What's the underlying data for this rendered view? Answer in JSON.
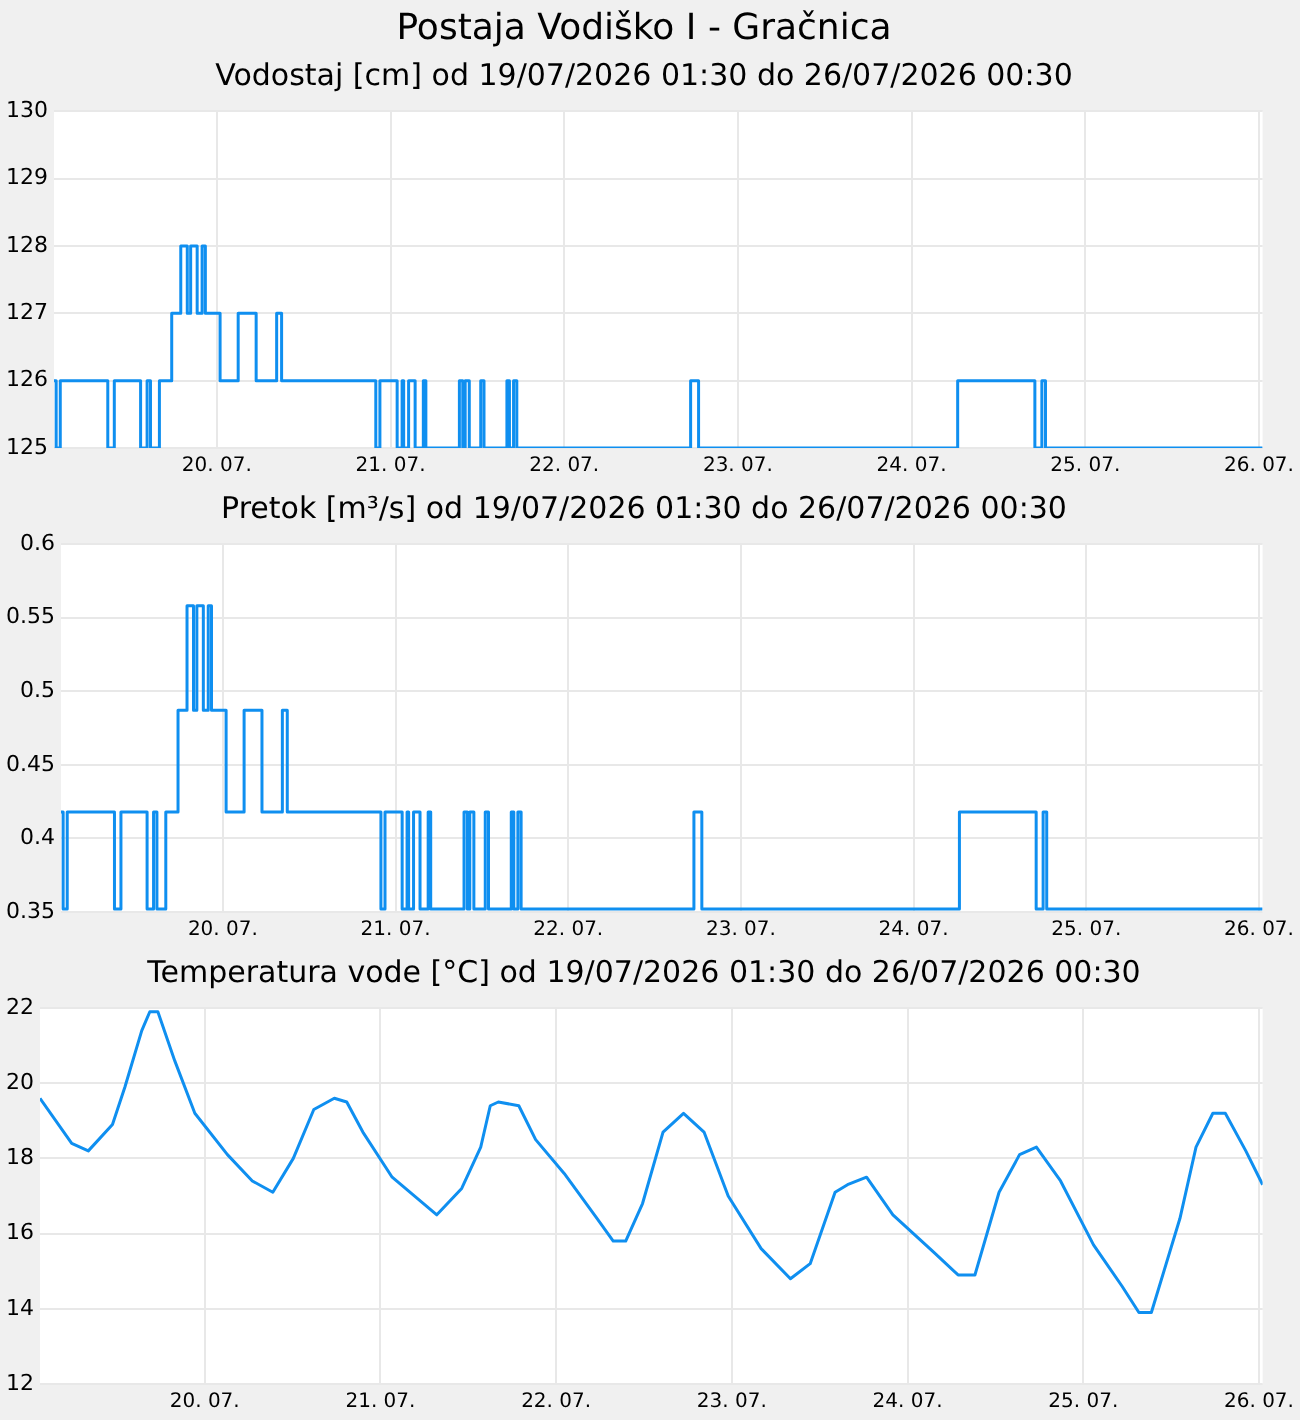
{
  "chart_data": [
    {
      "type": "step",
      "title": "Postaja Vodiško I - Gračnica",
      "subtitle": "Vodostaj [cm] od 19/07/2026 01:30 do 26/07/2026 00:30",
      "x": [
        "2026-07-19T01:30",
        "2026-07-19T01:48",
        "2026-07-19T02:22",
        "2026-07-19T08:56",
        "2026-07-19T09:50",
        "2026-07-19T13:28",
        "2026-07-19T14:22",
        "2026-07-19T14:50",
        "2026-07-19T16:04",
        "2026-07-19T17:46",
        "2026-07-19T19:01",
        "2026-07-19T19:55",
        "2026-07-19T20:23",
        "2026-07-19T21:17",
        "2026-07-19T21:58",
        "2026-07-19T22:25",
        "2026-07-20T00:27",
        "2026-07-20T02:57",
        "2026-07-20T05:26",
        "2026-07-20T08:16",
        "2026-07-20T08:57",
        "2026-07-20T21:58",
        "2026-07-20T22:32",
        "2026-07-21T00:55",
        "2026-07-21T01:36",
        "2026-07-21T01:49",
        "2026-07-21T02:30",
        "2026-07-21T03:24",
        "2026-07-21T04:32",
        "2026-07-21T04:53",
        "2026-07-21T09:31",
        "2026-07-21T09:59",
        "2026-07-21T10:19",
        "2026-07-21T10:53",
        "2026-07-21T12:28",
        "2026-07-21T12:55",
        "2026-07-21T16:05",
        "2026-07-21T16:26",
        "2026-07-21T17:00",
        "2026-07-21T17:27",
        "2026-07-22T17:28",
        "2026-07-22T18:34",
        "2026-07-24T06:22",
        "2026-07-24T17:02",
        "2026-07-24T18:00",
        "2026-07-24T18:30",
        "2026-07-26T00:30"
      ],
      "series": [
        {
          "color": "#0f8ff0",
          "values": [
            126,
            125,
            126,
            125,
            126,
            125,
            126,
            125,
            126,
            127,
            128,
            127,
            128,
            127,
            128,
            127,
            126,
            127,
            126,
            127,
            126,
            125,
            126,
            125,
            126,
            125,
            126,
            125,
            126,
            125,
            126,
            125,
            126,
            125,
            126,
            125,
            126,
            125,
            126,
            125,
            126,
            125,
            126,
            125,
            126,
            125,
            125
          ]
        }
      ],
      "xlim": [
        "2026-07-19T01:30",
        "2026-07-26T00:30"
      ],
      "xticks": [
        {
          "value": "2026-07-20",
          "label": "20. 07."
        },
        {
          "value": "2026-07-21",
          "label": "21. 07."
        },
        {
          "value": "2026-07-22",
          "label": "22. 07."
        },
        {
          "value": "2026-07-23",
          "label": "23. 07."
        },
        {
          "value": "2026-07-24",
          "label": "24. 07."
        },
        {
          "value": "2026-07-25",
          "label": "25. 07."
        },
        {
          "value": "2026-07-26",
          "label": "26. 07."
        }
      ],
      "ylim": [
        125,
        130
      ],
      "yticks": [
        125,
        126,
        127,
        128,
        129,
        130
      ],
      "grid": true,
      "legend": false
    },
    {
      "type": "step",
      "title": "Pretok [m³/s] od 19/07/2026 01:30 do 26/07/2026 00:30",
      "x": [
        "2026-07-19T01:30",
        "2026-07-19T01:48",
        "2026-07-19T02:22",
        "2026-07-19T08:56",
        "2026-07-19T09:50",
        "2026-07-19T13:28",
        "2026-07-19T14:22",
        "2026-07-19T14:50",
        "2026-07-19T16:04",
        "2026-07-19T17:46",
        "2026-07-19T19:01",
        "2026-07-19T19:55",
        "2026-07-19T20:23",
        "2026-07-19T21:17",
        "2026-07-19T21:58",
        "2026-07-19T22:25",
        "2026-07-20T00:27",
        "2026-07-20T02:57",
        "2026-07-20T05:26",
        "2026-07-20T08:16",
        "2026-07-20T08:57",
        "2026-07-20T21:58",
        "2026-07-20T22:32",
        "2026-07-21T00:55",
        "2026-07-21T01:36",
        "2026-07-21T01:49",
        "2026-07-21T02:30",
        "2026-07-21T03:24",
        "2026-07-21T04:32",
        "2026-07-21T04:53",
        "2026-07-21T09:31",
        "2026-07-21T09:59",
        "2026-07-21T10:19",
        "2026-07-21T10:53",
        "2026-07-21T12:28",
        "2026-07-21T12:55",
        "2026-07-21T16:05",
        "2026-07-21T16:26",
        "2026-07-21T17:00",
        "2026-07-21T17:27",
        "2026-07-22T17:28",
        "2026-07-22T18:34",
        "2026-07-24T06:22",
        "2026-07-24T17:02",
        "2026-07-24T18:00",
        "2026-07-24T18:30",
        "2026-07-26T00:30"
      ],
      "series": [
        {
          "color": "#0f8ff0",
          "values": [
            0.418,
            0.352,
            0.418,
            0.352,
            0.418,
            0.352,
            0.418,
            0.352,
            0.418,
            0.487,
            0.558,
            0.487,
            0.558,
            0.487,
            0.558,
            0.487,
            0.418,
            0.487,
            0.418,
            0.487,
            0.418,
            0.352,
            0.418,
            0.352,
            0.418,
            0.352,
            0.418,
            0.352,
            0.418,
            0.352,
            0.418,
            0.352,
            0.418,
            0.352,
            0.418,
            0.352,
            0.418,
            0.352,
            0.418,
            0.352,
            0.418,
            0.352,
            0.418,
            0.352,
            0.418,
            0.352,
            0.352
          ]
        }
      ],
      "xlim": [
        "2026-07-19T01:30",
        "2026-07-26T00:30"
      ],
      "xticks": [
        {
          "value": "2026-07-20",
          "label": "20. 07."
        },
        {
          "value": "2026-07-21",
          "label": "21. 07."
        },
        {
          "value": "2026-07-22",
          "label": "22. 07."
        },
        {
          "value": "2026-07-23",
          "label": "23. 07."
        },
        {
          "value": "2026-07-24",
          "label": "24. 07."
        },
        {
          "value": "2026-07-25",
          "label": "25. 07."
        },
        {
          "value": "2026-07-26",
          "label": "26. 07."
        }
      ],
      "ylim": [
        0.35,
        0.6
      ],
      "yticks": [
        0.35,
        0.4,
        0.45,
        0.5,
        0.55,
        0.6
      ],
      "grid": true,
      "legend": false
    },
    {
      "type": "line",
      "title": "Temperatura vode [°C] od 19/07/2026 01:30 do 26/07/2026 00:30",
      "x": [
        "2026-07-19T01:30",
        "2026-07-19T05:50",
        "2026-07-19T08:06",
        "2026-07-19T11:24",
        "2026-07-19T13:06",
        "2026-07-19T15:24",
        "2026-07-19T16:30",
        "2026-07-19T17:36",
        "2026-07-19T19:54",
        "2026-07-19T22:39",
        "2026-07-20T03:06",
        "2026-07-20T06:30",
        "2026-07-20T09:18",
        "2026-07-20T12:06",
        "2026-07-20T14:54",
        "2026-07-20T17:42",
        "2026-07-20T19:24",
        "2026-07-20T21:36",
        "2026-07-21T01:36",
        "2026-07-21T07:42",
        "2026-07-21T11:06",
        "2026-07-21T13:42",
        "2026-07-21T15:00",
        "2026-07-21T16:06",
        "2026-07-21T18:54",
        "2026-07-21T21:12",
        "2026-07-22T01:06",
        "2026-07-22T05:36",
        "2026-07-22T07:48",
        "2026-07-22T09:30",
        "2026-07-22T11:48",
        "2026-07-22T14:36",
        "2026-07-22T17:24",
        "2026-07-22T20:12",
        "2026-07-22T23:30",
        "2026-07-23T04:00",
        "2026-07-23T08:00",
        "2026-07-23T10:42",
        "2026-07-23T14:06",
        "2026-07-23T15:48",
        "2026-07-23T18:24",
        "2026-07-23T22:00",
        "2026-07-24T03:36",
        "2026-07-24T06:54",
        "2026-07-24T09:12",
        "2026-07-24T12:30",
        "2026-07-24T15:18",
        "2026-07-24T17:36",
        "2026-07-24T20:54",
        "2026-07-25T01:24",
        "2026-07-25T05:18",
        "2026-07-25T07:36",
        "2026-07-25T09:18",
        "2026-07-25T13:12",
        "2026-07-25T15:24",
        "2026-07-25T17:42",
        "2026-07-25T19:24",
        "2026-07-25T22:12",
        "2026-07-26T00:30"
      ],
      "series": [
        {
          "color": "#0f8ff0",
          "values": [
            19.6,
            18.4,
            18.2,
            18.9,
            19.9,
            21.4,
            21.9,
            21.9,
            20.6,
            19.2,
            18.1,
            17.4,
            17.1,
            18.0,
            19.3,
            19.6,
            19.5,
            18.7,
            17.5,
            16.5,
            17.2,
            18.3,
            19.4,
            19.5,
            19.4,
            18.5,
            17.6,
            16.4,
            15.8,
            15.8,
            16.8,
            18.7,
            19.2,
            18.7,
            17.0,
            15.6,
            14.8,
            15.2,
            17.1,
            17.3,
            17.5,
            16.5,
            15.5,
            14.9,
            14.9,
            17.1,
            18.1,
            18.3,
            17.4,
            15.7,
            14.6,
            13.9,
            13.9,
            16.4,
            18.3,
            19.2,
            19.2,
            18.2,
            17.3
          ]
        }
      ],
      "xlim": [
        "2026-07-19T01:30",
        "2026-07-26T00:30"
      ],
      "xticks": [
        {
          "value": "2026-07-20",
          "label": "20. 07."
        },
        {
          "value": "2026-07-21",
          "label": "21. 07."
        },
        {
          "value": "2026-07-22",
          "label": "22. 07."
        },
        {
          "value": "2026-07-23",
          "label": "23. 07."
        },
        {
          "value": "2026-07-24",
          "label": "24. 07."
        },
        {
          "value": "2026-07-25",
          "label": "25. 07."
        },
        {
          "value": "2026-07-26",
          "label": "26. 07."
        }
      ],
      "ylim": [
        12,
        22
      ],
      "yticks": [
        12,
        14,
        16,
        18,
        20,
        22
      ],
      "grid": true,
      "legend": false
    }
  ]
}
